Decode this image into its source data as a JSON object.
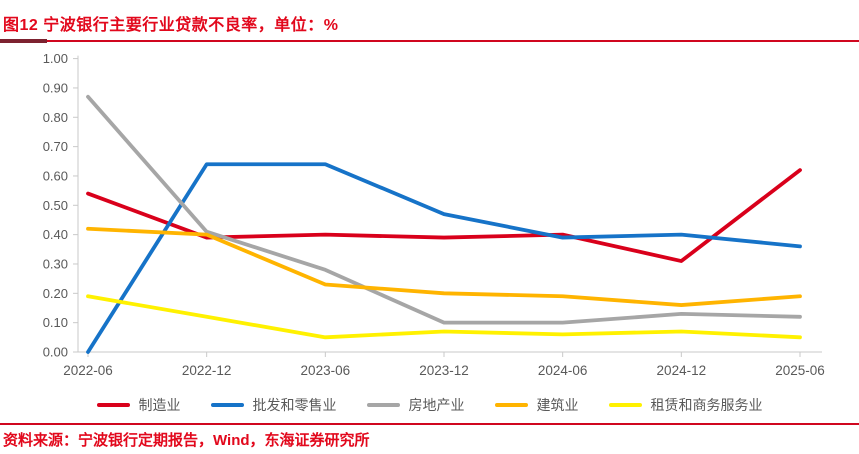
{
  "header": {
    "title": "图12  宁波银行主要行业贷款不良率，单位：%"
  },
  "footer": {
    "source": "资料来源：宁波银行定期报告，Wind，东海证券研究所"
  },
  "colors": {
    "accent_red": "#e2081c",
    "rule_red": "#d0071f",
    "rule_dark_red": "#7d2230",
    "axis_line": "#c9c9c9",
    "axis_label": "#595959"
  },
  "chart_data": {
    "type": "line",
    "title": "宁波银行主要行业贷款不良率",
    "unit": "%",
    "categories": [
      "2022-06",
      "2022-12",
      "2023-06",
      "2023-12",
      "2024-06",
      "2024-12",
      "2025-06"
    ],
    "series": [
      {
        "name": "制造业",
        "color": "#d9001b",
        "values": [
          0.54,
          0.39,
          0.4,
          0.39,
          0.4,
          0.31,
          0.62
        ]
      },
      {
        "name": "批发和零售业",
        "color": "#1673c8",
        "values": [
          0.0,
          0.64,
          0.64,
          0.47,
          0.39,
          0.4,
          0.36
        ]
      },
      {
        "name": "房地产业",
        "color": "#a6a6a6",
        "values": [
          0.87,
          0.41,
          0.28,
          0.1,
          0.1,
          0.13,
          0.12
        ]
      },
      {
        "name": "建筑业",
        "color": "#ffb400",
        "values": [
          0.42,
          0.4,
          0.23,
          0.2,
          0.19,
          0.16,
          0.19
        ]
      },
      {
        "name": "租赁和商务服务业",
        "color": "#fff100",
        "values": [
          0.19,
          0.12,
          0.05,
          0.07,
          0.06,
          0.07,
          0.05
        ]
      }
    ],
    "ylim": [
      0.0,
      1.0
    ],
    "ytick_step": 0.1,
    "ytick_labels": [
      "0.00",
      "0.10",
      "0.20",
      "0.30",
      "0.40",
      "0.50",
      "0.60",
      "0.70",
      "0.80",
      "0.90",
      "1.00"
    ],
    "grid": false,
    "legend_position": "bottom"
  }
}
